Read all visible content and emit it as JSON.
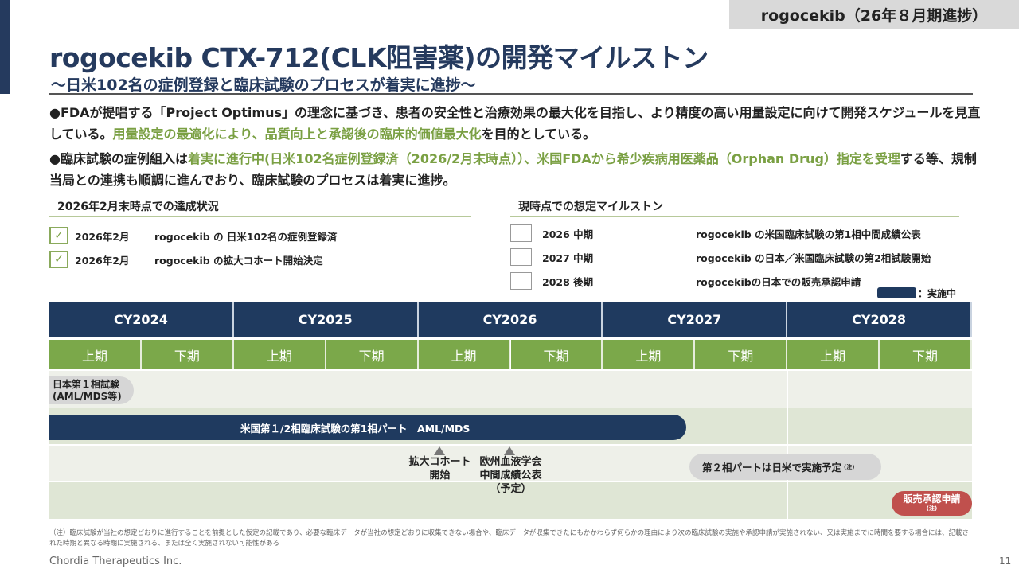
{
  "header": {
    "tag": "rogocekib（26年８月期進捗）",
    "title": "rogocekib CTX-712(CLK阻害薬)の開発マイルストン",
    "subtitle": "～日米102名の症例登録と臨床試験のプロセスが着実に進捗～"
  },
  "bullets": [
    {
      "parts": [
        {
          "text": "●FDAが提唱する「Project Optimus」の理念に基づき、患者の安全性と治療効果の最大化を目指し、より精度の高い用量設定に向けて開発スケジュールを見直している。",
          "hl": false
        },
        {
          "text": "用量設定の最適化により、品質向上と承認後の臨床的価値最大化",
          "hl": true
        },
        {
          "text": "を目的としている。",
          "hl": false
        }
      ]
    },
    {
      "parts": [
        {
          "text": "●臨床試験の症例組入は",
          "hl": false
        },
        {
          "text": "着実に進行中(日米102名症例登録済（2026/2月末時点））、米国FDAから希少疾病用医薬品（Orphan Drug）指定を受理",
          "hl": true
        },
        {
          "text": "する等、規制当局との連携も順調に進んでおり、臨床試験のプロセスは着実に進捗。",
          "hl": false
        }
      ]
    }
  ],
  "achieved": {
    "heading": "2026年2月末時点での達成状況",
    "items": [
      {
        "date": "2026年2月",
        "text": "rogocekib の 日米102名の症例登録済",
        "checked": true
      },
      {
        "date": "2026年2月",
        "text": "rogocekib の拡大コホート開始決定",
        "checked": true
      }
    ]
  },
  "planned": {
    "heading": "現時点での想定マイルストン",
    "items": [
      {
        "date": "2026 中期",
        "text": "rogocekib の米国臨床試験の第1相中間成績公表",
        "checked": false
      },
      {
        "date": "2027 中期",
        "text": "rogocekib の日本／米国臨床試験の第2相試験開始",
        "checked": false
      },
      {
        "date": "2028 後期",
        "text": "rogocekibの日本での販売承認申請",
        "checked": false
      }
    ]
  },
  "legend": {
    "label": "：実施中",
    "color": "#1f3a5f"
  },
  "timeline": {
    "years": [
      "CY2024",
      "CY2025",
      "CY2026",
      "CY2027",
      "CY2028"
    ],
    "halves": [
      "上期",
      "下期",
      "上期",
      "下期",
      "上期",
      "下期",
      "上期",
      "下期",
      "上期",
      "下期"
    ],
    "japan_phase1": [
      "日本第１相試験",
      "(AML/MDS等)"
    ],
    "us_bar": "米国第１/2相臨床試験の第1相パート　AML/MDS",
    "milestone1": [
      "拡大コホート",
      "開始"
    ],
    "milestone2": [
      "欧州血液学会",
      "中間成績公表",
      "（予定）"
    ],
    "phase2": "第２相パートは日米で実施予定",
    "phase2_note": "(注)",
    "filing": "販売承認申請",
    "filing_note": "(注)"
  },
  "footnote": "（注）臨床試験が当社の想定どおりに進行することを前提とした仮定の記載であり、必要な臨床データが当社の想定どおりに収集できない場合や、臨床データが収集できたにもかかわらず何らかの理由により次の臨床試験の実施や承認申請が実施されない、又は実施までに時間を要する場合には、記載された時期と異なる時期に実施される、または全く実施されない可能性がある",
  "footer": {
    "company": "Chordia Therapeutics Inc.",
    "page": "11"
  }
}
